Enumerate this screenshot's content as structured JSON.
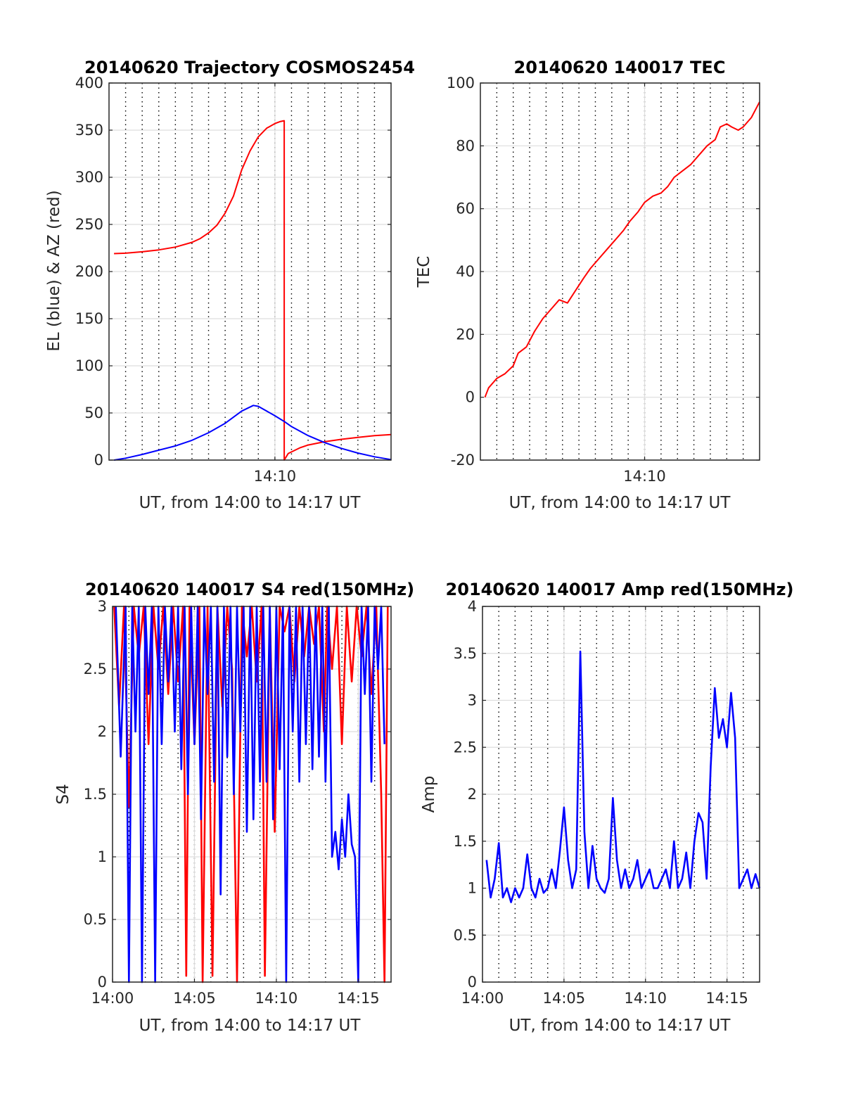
{
  "figure": {
    "background": "#ffffff"
  },
  "chart_data": [
    {
      "type": "line",
      "title": "20140620 Trajectory COSMOS2454",
      "xlabel": "UT, from 14:00 to 14:17 UT",
      "ylabel": "EL (blue) & AZ (red)",
      "xlim": [
        0,
        17
      ],
      "ylim": [
        0,
        400
      ],
      "yticks": [
        0,
        50,
        100,
        150,
        200,
        250,
        300,
        350,
        400
      ],
      "xticks": [
        {
          "value": 10,
          "label": "14:10"
        }
      ],
      "grid": true,
      "series": [
        {
          "color": "#ff0000",
          "x": [
            0.3,
            1,
            2,
            3,
            4,
            5,
            5.5,
            6,
            6.5,
            7,
            7.5,
            8,
            8.5,
            9,
            9.5,
            10,
            10.3,
            10.55,
            10.56,
            10.56,
            10.8,
            11.5,
            12,
            13,
            14,
            15,
            16,
            17
          ],
          "y": [
            219,
            219.5,
            221,
            223,
            226,
            231,
            235,
            241,
            249,
            262,
            280,
            308,
            328,
            343,
            352,
            357,
            359,
            360,
            360,
            0,
            7,
            13,
            16,
            19.5,
            22,
            24,
            26,
            27
          ]
        },
        {
          "color": "#0000ff",
          "x": [
            0.3,
            1,
            2,
            3,
            4,
            5,
            6,
            7,
            8,
            8.7,
            9,
            10,
            10.56,
            11,
            12,
            13,
            14,
            15,
            16,
            17
          ],
          "y": [
            0,
            2,
            6,
            10.5,
            15,
            21,
            29,
            39,
            52,
            58,
            57,
            47,
            41,
            35.5,
            26,
            18.5,
            12.5,
            7.5,
            3.5,
            0.5
          ]
        }
      ]
    },
    {
      "type": "line",
      "title": "20140620 140017 TEC",
      "xlabel": "UT, from 14:00 to 14:17 UT",
      "ylabel": "TEC",
      "xlim": [
        0,
        17
      ],
      "ylim": [
        -20,
        100
      ],
      "yticks": [
        -20,
        0,
        20,
        40,
        60,
        80,
        100
      ],
      "xticks": [
        {
          "value": 10,
          "label": "14:10"
        }
      ],
      "grid": true,
      "series": [
        {
          "color": "#ff0000",
          "x": [
            0.28,
            0.5,
            1,
            1.5,
            2,
            2.3,
            2.8,
            3.3,
            3.8,
            4.3,
            4.8,
            5.3,
            5.8,
            6.3,
            6.7,
            7.2,
            7.7,
            8.2,
            8.7,
            9.1,
            9.6,
            10,
            10.5,
            11,
            11.4,
            11.8,
            12.3,
            12.8,
            13.3,
            13.8,
            14.3,
            14.6,
            15,
            15.3,
            15.7,
            16,
            16.5,
            17
          ],
          "y": [
            0,
            3,
            6,
            7.5,
            10,
            14,
            16,
            21,
            25,
            28,
            31,
            30,
            34,
            38,
            41,
            44,
            47,
            50,
            53,
            56,
            59,
            62,
            64,
            65,
            67,
            70,
            72,
            74,
            77,
            80,
            82,
            86,
            87,
            86,
            85,
            86,
            89,
            94
          ]
        }
      ]
    },
    {
      "type": "line",
      "title": "20140620 140017 S4 red(150MHz)",
      "xlabel": "UT, from 14:00 to 14:17 UT",
      "ylabel": "S4",
      "xlim": [
        0,
        17
      ],
      "ylim": [
        0,
        3
      ],
      "yticks": [
        0,
        0.5,
        1,
        1.5,
        2,
        2.5,
        3
      ],
      "xticks": [
        {
          "value": 0,
          "label": "14:00"
        },
        {
          "value": 5,
          "label": "14:05"
        },
        {
          "value": 10,
          "label": "14:10"
        },
        {
          "value": 15,
          "label": "14:15"
        }
      ],
      "grid": true,
      "series": [
        {
          "color": "#ff0000",
          "x": [
            0.1,
            0.4,
            0.7,
            1.0,
            1.3,
            1.6,
            1.9,
            2.2,
            2.5,
            2.8,
            3.1,
            3.4,
            3.7,
            4.0,
            4.3,
            4.5,
            4.7,
            5.0,
            5.3,
            5.5,
            5.8,
            6.1,
            6.4,
            6.7,
            7.0,
            7.3,
            7.6,
            7.9,
            8.2,
            8.5,
            8.8,
            9.1,
            9.3,
            9.6,
            9.9,
            10.2,
            10.5,
            10.8,
            11.1,
            11.4,
            11.7,
            12.0,
            12.3,
            12.6,
            12.9,
            13.1,
            13.4,
            13.7,
            14.0,
            14.3,
            14.6,
            14.9,
            15.2,
            15.5,
            15.8,
            16.1,
            16.4,
            16.6,
            16.8
          ],
          "y": [
            3,
            2.2,
            3,
            1.4,
            3,
            2.6,
            3,
            1.9,
            3,
            2.5,
            3,
            2.3,
            3,
            2.4,
            3,
            0.05,
            3,
            1.9,
            3,
            0,
            3,
            0.05,
            3,
            2.2,
            3,
            2.5,
            0,
            3,
            2.6,
            3,
            2.4,
            3,
            0.05,
            3,
            1.2,
            3,
            2.8,
            3,
            2.4,
            3,
            2.6,
            3,
            2.7,
            3,
            2.0,
            3,
            2.5,
            3,
            1.9,
            3,
            2.4,
            3,
            2.6,
            3,
            2.3,
            3,
            1.5,
            0,
            3
          ]
        },
        {
          "color": "#0000ff",
          "x": [
            0.2,
            0.5,
            0.8,
            1.0,
            1.2,
            1.4,
            1.6,
            1.8,
            2.0,
            2.2,
            2.4,
            2.6,
            2.8,
            3.0,
            3.2,
            3.4,
            3.6,
            3.8,
            4.0,
            4.2,
            4.4,
            4.6,
            4.8,
            5.0,
            5.2,
            5.4,
            5.6,
            5.8,
            6.0,
            6.2,
            6.4,
            6.6,
            6.8,
            7.0,
            7.2,
            7.4,
            7.6,
            7.8,
            8.0,
            8.2,
            8.4,
            8.6,
            8.8,
            9.0,
            9.2,
            9.4,
            9.6,
            9.8,
            10.0,
            10.2,
            10.4,
            10.6,
            10.8,
            11.0,
            11.2,
            11.4,
            11.6,
            11.8,
            12.0,
            12.2,
            12.4,
            12.6,
            12.8,
            13.0,
            13.2,
            13.4,
            13.6,
            13.8,
            14.0,
            14.2,
            14.4,
            14.6,
            14.8,
            15.0,
            15.2,
            15.4,
            15.6,
            15.8,
            16.0,
            16.2,
            16.4,
            16.6
          ],
          "y": [
            3,
            1.8,
            3,
            0,
            3,
            2.0,
            3,
            0,
            3,
            2.3,
            3,
            0,
            3,
            1.9,
            3,
            2.4,
            3,
            2.0,
            3,
            1.7,
            3,
            1.5,
            3,
            1.9,
            3,
            1.3,
            3,
            2.3,
            3,
            1.6,
            3,
            0.7,
            3,
            1.8,
            3,
            1.5,
            3,
            2.0,
            3,
            1.2,
            3,
            1.3,
            3,
            1.6,
            3,
            1.6,
            3,
            1.3,
            3,
            1.7,
            3,
            0,
            3,
            2.0,
            3,
            1.6,
            3,
            1.9,
            3,
            1.7,
            3,
            1.8,
            3,
            1.6,
            3,
            1.0,
            1.2,
            0.9,
            1.3,
            1.0,
            1.5,
            1.1,
            1.0,
            0,
            3,
            2.3,
            3,
            1.6,
            3,
            2.5,
            3,
            1.9
          ]
        }
      ]
    },
    {
      "type": "line",
      "title": "20140620 140017 Amp red(150MHz)",
      "xlabel": "UT, from 14:00 to 14:17 UT",
      "ylabel": "Amp",
      "xlim": [
        0,
        17
      ],
      "ylim": [
        0,
        4
      ],
      "yticks": [
        0,
        0.5,
        1,
        1.5,
        2,
        2.5,
        3,
        3.5,
        4
      ],
      "xticks": [
        {
          "value": 0,
          "label": "14:00"
        },
        {
          "value": 5,
          "label": "14:05"
        },
        {
          "value": 10,
          "label": "14:10"
        },
        {
          "value": 15,
          "label": "14:15"
        }
      ],
      "grid": true,
      "series": [
        {
          "color": "#0000ff",
          "x": [
            0.25,
            0.5,
            0.75,
            1.0,
            1.25,
            1.5,
            1.75,
            2.0,
            2.25,
            2.5,
            2.75,
            3.0,
            3.25,
            3.5,
            3.75,
            4.0,
            4.25,
            4.5,
            4.75,
            5.0,
            5.25,
            5.5,
            5.75,
            6.0,
            6.25,
            6.5,
            6.75,
            7.0,
            7.25,
            7.5,
            7.75,
            8.0,
            8.25,
            8.5,
            8.75,
            9.0,
            9.25,
            9.5,
            9.75,
            10.0,
            10.25,
            10.5,
            10.75,
            11.0,
            11.25,
            11.5,
            11.75,
            12.0,
            12.25,
            12.5,
            12.75,
            13.0,
            13.25,
            13.5,
            13.75,
            14.0,
            14.25,
            14.5,
            14.75,
            15.0,
            15.25,
            15.5,
            15.75,
            16.0,
            16.25,
            16.5,
            16.75,
            17.0
          ],
          "y": [
            1.3,
            0.9,
            1.1,
            1.48,
            0.9,
            1.0,
            0.85,
            1.0,
            0.9,
            1.0,
            1.36,
            1.0,
            0.9,
            1.1,
            0.95,
            1.0,
            1.2,
            1.0,
            1.4,
            1.86,
            1.3,
            1.0,
            1.2,
            3.52,
            1.6,
            1.0,
            1.45,
            1.1,
            1.0,
            0.95,
            1.1,
            1.96,
            1.3,
            1.0,
            1.2,
            1.0,
            1.1,
            1.3,
            1.0,
            1.1,
            1.2,
            1.0,
            1.0,
            1.1,
            1.2,
            1.0,
            1.5,
            1.0,
            1.1,
            1.38,
            1.0,
            1.5,
            1.8,
            1.7,
            1.1,
            2.3,
            3.13,
            2.6,
            2.8,
            2.5,
            3.08,
            2.6,
            1.0,
            1.1,
            1.2,
            1.0,
            1.15,
            1.0
          ]
        }
      ]
    }
  ]
}
